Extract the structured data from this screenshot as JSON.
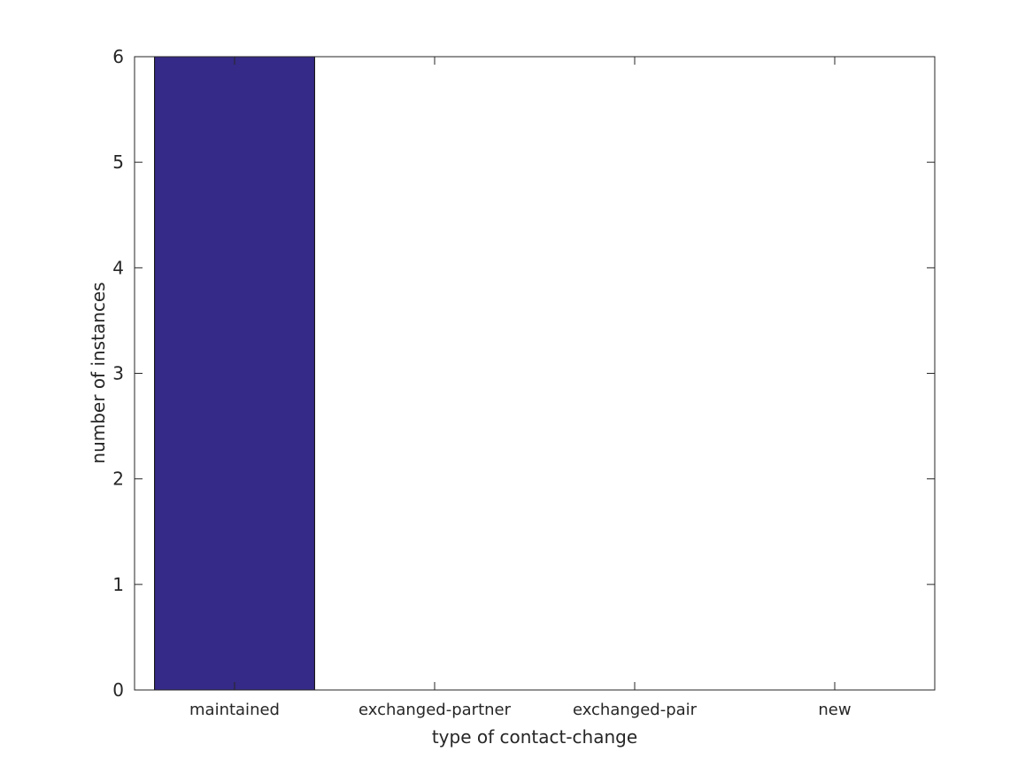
{
  "chart_data": {
    "type": "bar",
    "title": "",
    "xlabel": "type of contact-change",
    "ylabel": "number of instances",
    "categories": [
      "maintained",
      "exchanged-partner",
      "exchanged-pair",
      "new"
    ],
    "values": [
      6,
      0,
      0,
      0
    ],
    "ylim": [
      0,
      6
    ],
    "yticks": [
      "0",
      "1",
      "2",
      "3",
      "4",
      "5",
      "6"
    ],
    "grid": false,
    "bar_color": "#352a87",
    "axis_color": "#262626"
  }
}
